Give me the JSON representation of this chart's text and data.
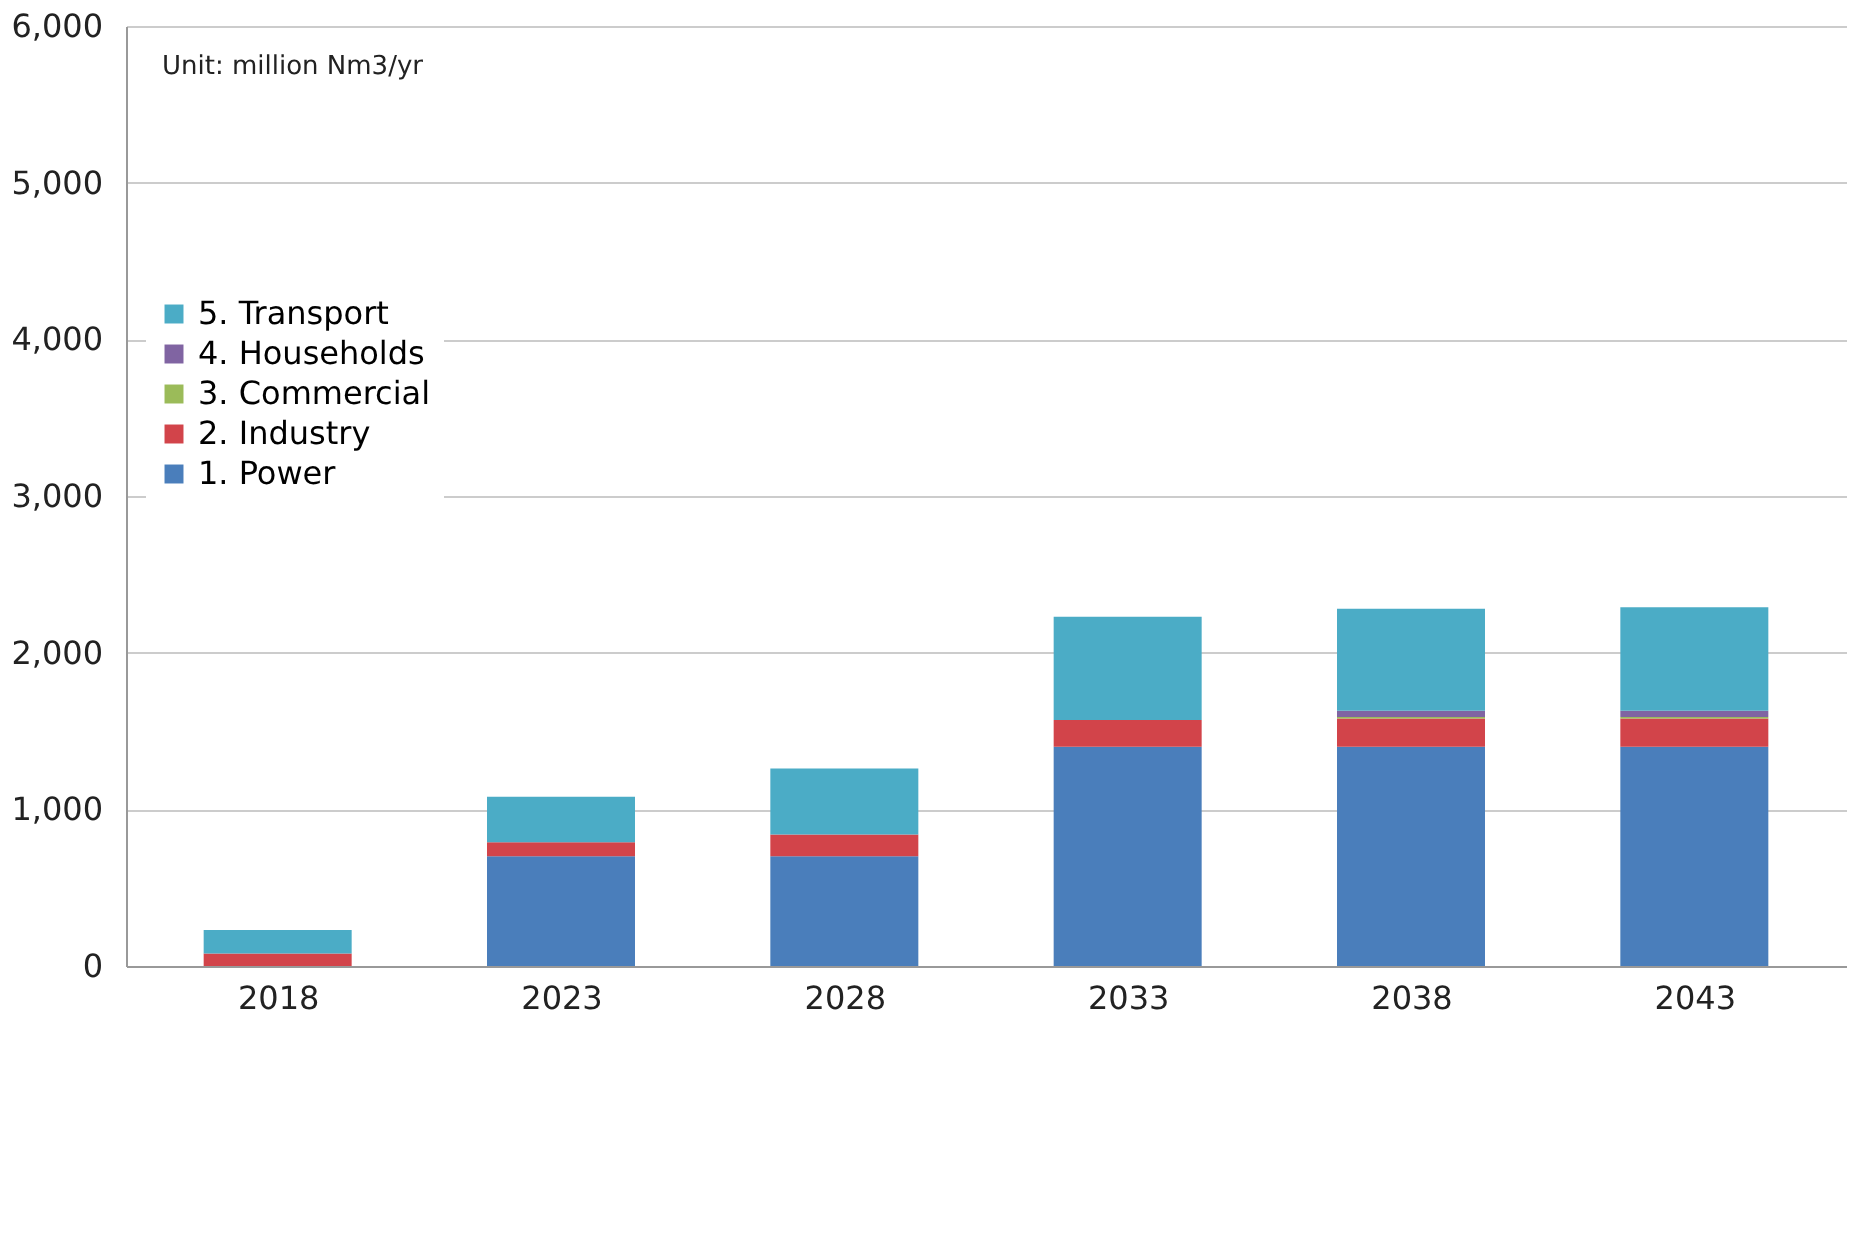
{
  "chart_data": {
    "type": "bar",
    "stacked": true,
    "categories": [
      "2018",
      "2023",
      "2028",
      "2033",
      "2038",
      "2043"
    ],
    "series": [
      {
        "name": "1. Power",
        "color": "#4a7ebb",
        "values": [
          0,
          700,
          700,
          1400,
          1400,
          1400
        ]
      },
      {
        "name": "2. Industry",
        "color": "#d2444a",
        "values": [
          80,
          90,
          140,
          170,
          180,
          180
        ]
      },
      {
        "name": "3. Commercial",
        "color": "#9bbb59",
        "values": [
          0,
          0,
          0,
          0,
          10,
          10
        ]
      },
      {
        "name": "4. Households",
        "color": "#8064a2",
        "values": [
          0,
          0,
          0,
          0,
          40,
          40
        ]
      },
      {
        "name": "5. Transport",
        "color": "#4bacc6",
        "values": [
          150,
          290,
          420,
          660,
          650,
          660
        ]
      }
    ],
    "ylim": [
      0,
      6000
    ],
    "yticks": [
      {
        "value": 0,
        "label": "0"
      },
      {
        "value": 1000,
        "label": "1,000"
      },
      {
        "value": 2000,
        "label": "2,000"
      },
      {
        "value": 3000,
        "label": "3,000"
      },
      {
        "value": 4000,
        "label": "4,000"
      },
      {
        "value": 5000,
        "label": "5,000"
      },
      {
        "value": 6000,
        "label": "6,000"
      }
    ],
    "grid": "y",
    "legend": "top left",
    "annotations": [
      "Unit: million  Nm3/yr"
    ]
  }
}
